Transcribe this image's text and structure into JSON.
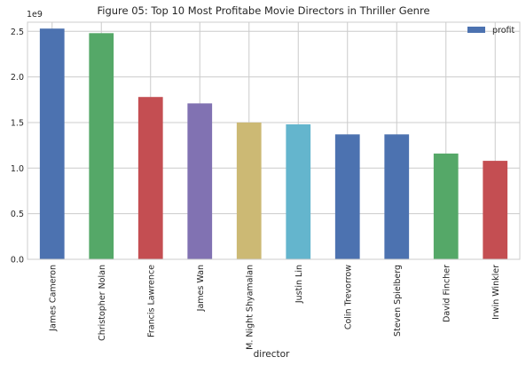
{
  "chart_data": {
    "type": "bar",
    "title": "Figure 05: Top 10 Most Profitabe Movie Directors in Thriller Genre",
    "xlabel": "director",
    "ylabel": "",
    "y_offset_label": "1e9",
    "categories": [
      "James Cameron",
      "Christopher Nolan",
      "Francis Lawrence",
      "James Wan",
      "M. Night Shyamalan",
      "Justin Lin",
      "Colin Trevorrow",
      "Steven Spielberg",
      "David Fincher",
      "Irwin Winkler"
    ],
    "series": [
      {
        "name": "profit",
        "values": [
          2.53,
          2.48,
          1.78,
          1.71,
          1.5,
          1.48,
          1.37,
          1.37,
          1.16,
          1.08
        ],
        "unit_multiplier": 1000000000
      }
    ],
    "bar_colors": [
      "#4c72b0",
      "#55a868",
      "#c44e52",
      "#8172b2",
      "#ccb974",
      "#64b5cd",
      "#4c72b0",
      "#4c72b0",
      "#55a868",
      "#c44e52"
    ],
    "legend_color": "#4c72b0",
    "ylim": [
      0,
      2.6
    ],
    "yticks": [
      "0.0",
      "0.5",
      "1.0",
      "1.5",
      "2.0",
      "2.5"
    ],
    "grid": true,
    "legend_position": "top-right"
  }
}
